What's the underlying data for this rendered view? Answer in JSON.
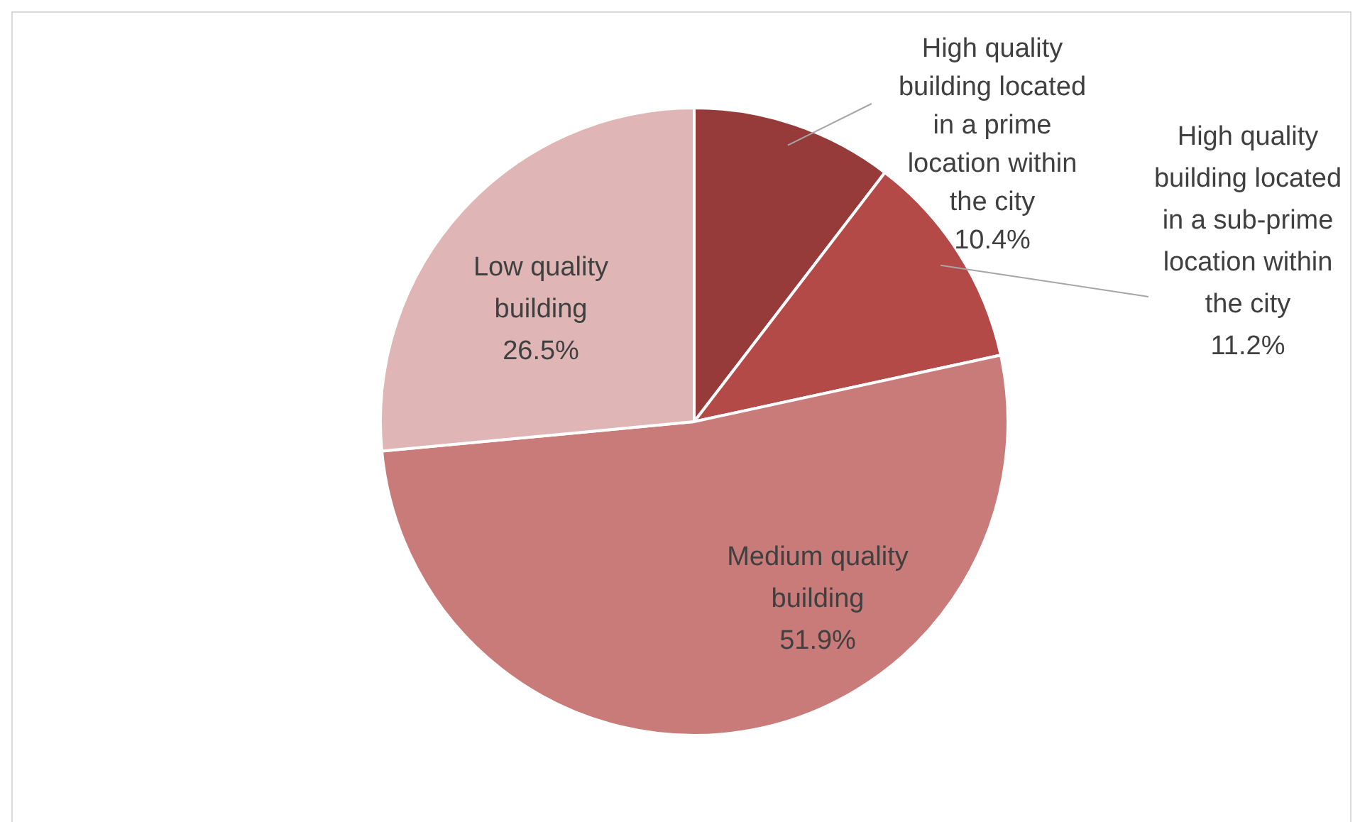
{
  "chart_data": {
    "type": "pie",
    "categories": [
      "High quality building located in a prime location within the city",
      "High quality building located in a sub-prime location within the city",
      "Medium quality building",
      "Low quality building"
    ],
    "values": [
      10.4,
      11.2,
      51.9,
      26.5
    ],
    "colors": [
      "#963a3a",
      "#b34a48",
      "#c97b7a",
      "#dfb6b5"
    ],
    "value_labels": [
      "10.4%",
      "11.2%",
      "51.9%",
      "26.5%"
    ],
    "legend": false
  }
}
